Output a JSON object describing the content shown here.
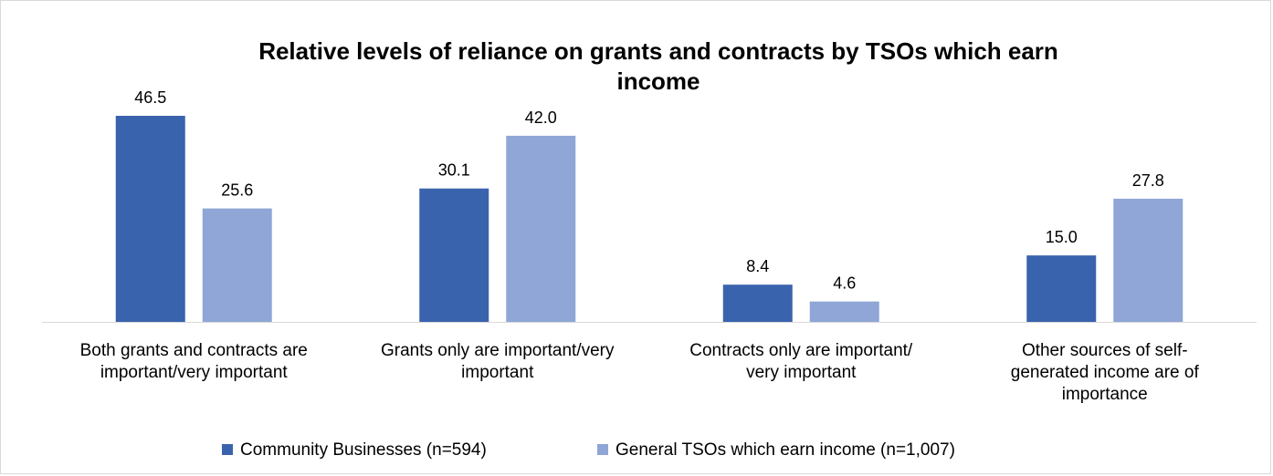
{
  "chart_data": {
    "type": "bar",
    "title": "Relative levels of reliance on grants and contracts by TSOs which earn income",
    "title_lines": [
      "Relative levels of reliance on grants and contracts by TSOs which earn",
      "income"
    ],
    "categories": [
      "Both grants and contracts are important/very important",
      "Grants only are important/very important",
      "Contracts only are important/ very important",
      "Other sources of self-generated income are of importance"
    ],
    "category_lines": [
      [
        "Both grants and contracts are",
        "important/very important"
      ],
      [
        "Grants only are important/very",
        "important"
      ],
      [
        "Contracts only are important/",
        "very important"
      ],
      [
        "Other sources of self-",
        "generated income are of",
        "importance"
      ]
    ],
    "series": [
      {
        "name": "Community Businesses (n=594)",
        "color": "#3a63ad",
        "values": [
          46.5,
          30.1,
          8.4,
          15.0
        ],
        "labels": [
          "46.5",
          "30.1",
          "8.4",
          "15.0"
        ]
      },
      {
        "name": "General TSOs which earn income (n=1,007)",
        "color": "#8fa6d6",
        "values": [
          25.6,
          42.0,
          4.6,
          27.8
        ],
        "labels": [
          "25.6",
          "42.0",
          "4.6",
          "27.8"
        ]
      }
    ],
    "ylim": [
      0,
      50
    ],
    "xlabel": "",
    "ylabel": "",
    "legend_position": "bottom",
    "grid": false
  }
}
